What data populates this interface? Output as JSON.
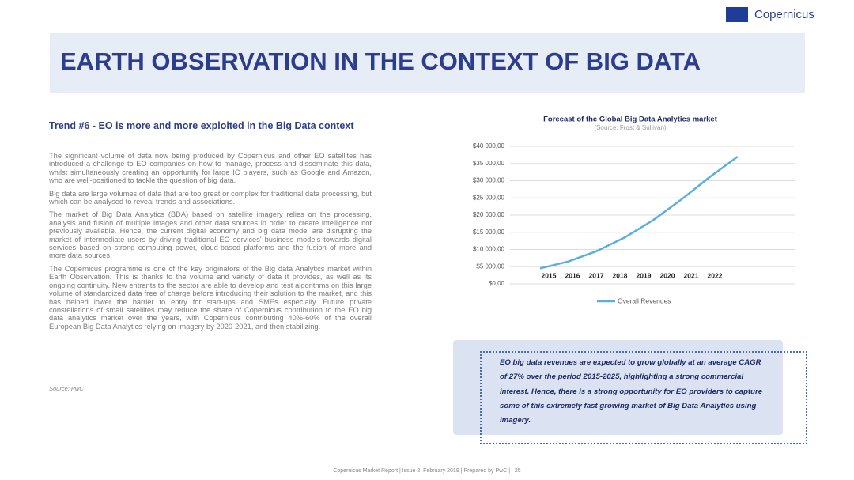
{
  "logo": {
    "text": "Copernicus"
  },
  "header": {
    "title": "EARTH OBSERVATION IN THE CONTEXT OF BIG DATA"
  },
  "body": {
    "heading": "Trend #6 - EO is more and more exploited in the Big Data context",
    "paragraphs": [
      "The significant volume of data now being produced by Copernicus and other EO satellites has introduced a challenge to EO companies on how to manage, process and disseminate this data, whilst simultaneously creating an opportunity for large IC players, such as Google and Amazon, who are well-positioned to tackle the question of big data.",
      "Big data are large volumes of data that are too great or complex for traditional data processing, but which can be analysed to reveal trends and associations.",
      "The market of Big Data Analytics (BDA) based on satellite imagery relies on the processing, analysis and fusion of multiple images and other data sources in order to create intelligence not previously available. Hence, the current digital economy and big data model are disrupting the market of intermediate users by driving traditional EO services' business models towards digital services based on strong computing power, cloud-based platforms and the fusion of more and more data sources.",
      "The Copernicus programme is one of the key originators of the Big data Analytics market within Earth Observation. This is thanks to the volume and variety of data it provides, as well as its ongoing continuity. New entrants to the sector are able to develop and test algorithms on this large volume of standardized data free of charge before introducing their solution to the market, and this has helped lower the barrier to entry for start-ups and SMEs especially. Future private constellations of small satellites may reduce the share of Copernicus contribution to the EO big data analytics market over the years, with Copernicus contributing 40%-60% of the overall European Big Data Analytics relying on imagery by 2020-2021, and then stabilizing."
    ],
    "source": "Source: PwC"
  },
  "chart_data": {
    "type": "line",
    "title": "Forecast of the Global Big Data Analytics market",
    "subtitle": "(Source: Frost & Sullivan)",
    "categories": [
      "2015",
      "2016",
      "2017",
      "2018",
      "2019",
      "2020",
      "2021",
      "2022"
    ],
    "series": [
      {
        "name": "Overall Revenues",
        "color": "#5bafe0",
        "values": [
          4500,
          6500,
          9500,
          13500,
          18500,
          24500,
          31000,
          37000
        ]
      }
    ],
    "ylim": [
      0,
      40000
    ],
    "yticks": [
      {
        "value": 0,
        "label": "$0,00"
      },
      {
        "value": 5000,
        "label": "$5 000,00"
      },
      {
        "value": 10000,
        "label": "$10 000,00"
      },
      {
        "value": 15000,
        "label": "$15 000,00"
      },
      {
        "value": 20000,
        "label": "$20 000,00"
      },
      {
        "value": 25000,
        "label": "$25 000,00"
      },
      {
        "value": 30000,
        "label": "$30 000,00"
      },
      {
        "value": 35000,
        "label": "$35 000,00"
      },
      {
        "value": 40000,
        "label": "$40 000,00"
      }
    ],
    "grid": true,
    "legend": "bottom"
  },
  "callout": {
    "text": "EO big data revenues are expected to grow globally at an average CAGR of 27% over the period 2015-2025, highlighting a strong commercial interest. Hence, there is a strong opportunity for EO providers to capture some of this extremely fast growing market of Big Data Analytics using imagery."
  },
  "footer": {
    "text": "Copernicus Market Report | Issue 2, February 2019 | Prepared by PwC |",
    "page": "25"
  }
}
